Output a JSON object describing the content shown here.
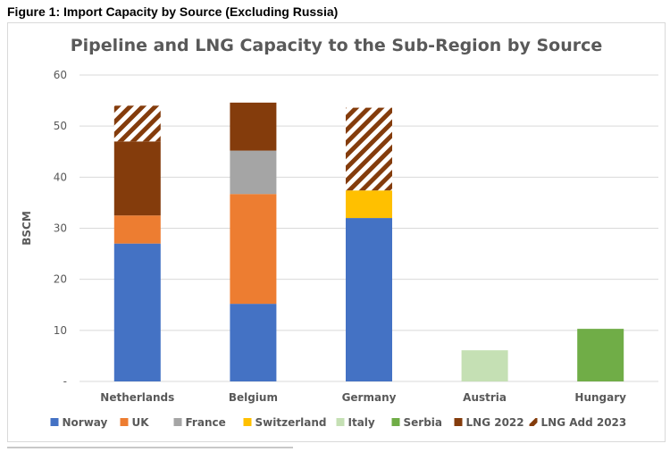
{
  "figure_caption": "Figure 1: Import Capacity by Source (Excluding Russia)",
  "chart_data": {
    "type": "bar",
    "stacked": true,
    "title": "Pipeline and LNG Capacity to the Sub-Region by Source",
    "xlabel": "",
    "ylabel": "BSCM",
    "ylim": [
      0,
      60
    ],
    "yticks": [
      "-",
      "10",
      "20",
      "30",
      "40",
      "50",
      "60"
    ],
    "grid": true,
    "legend_position": "bottom",
    "categories": [
      "Netherlands",
      "Belgium",
      "Germany",
      "Austria",
      "Hungary"
    ],
    "series": [
      {
        "name": "Norway",
        "color": "#4472C4",
        "pattern": "solid",
        "values": [
          27,
          15.2,
          32,
          0,
          0
        ]
      },
      {
        "name": "UK",
        "color": "#ED7D31",
        "pattern": "solid",
        "values": [
          5.5,
          21.5,
          0,
          0,
          0
        ]
      },
      {
        "name": "France",
        "color": "#A5A5A5",
        "pattern": "solid",
        "values": [
          0,
          8.5,
          0,
          0,
          0
        ]
      },
      {
        "name": "Switzerland",
        "color": "#FFC000",
        "pattern": "solid",
        "values": [
          0,
          0,
          5.4,
          0,
          0
        ]
      },
      {
        "name": "Italy",
        "color": "#C5E0B4",
        "pattern": "solid",
        "values": [
          0,
          0,
          0,
          6.1,
          0
        ]
      },
      {
        "name": "Serbia",
        "color": "#70AD47",
        "pattern": "solid",
        "values": [
          0,
          0,
          0,
          0,
          10.3
        ]
      },
      {
        "name": "LNG 2022",
        "color": "#843C0C",
        "pattern": "solid",
        "values": [
          14.5,
          9.4,
          0,
          0,
          0
        ]
      },
      {
        "name": "LNG Add 2023",
        "color": "#843C0C",
        "pattern": "hatch",
        "values": [
          7,
          0,
          16.2,
          0,
          0
        ]
      }
    ]
  }
}
